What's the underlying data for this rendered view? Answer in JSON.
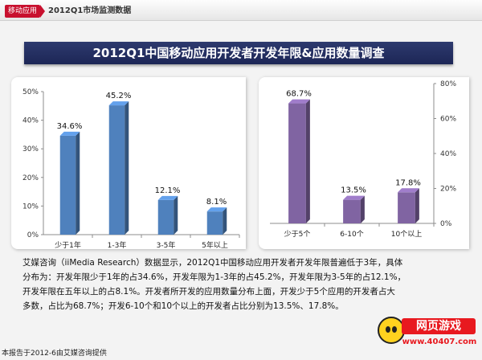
{
  "header": {
    "category_tag": "移动应用",
    "report_label": "2012Q1市场监测数据"
  },
  "banner_title": "2012Q1中国移动应用开发者开发年限&应用数量调查",
  "chart_data": [
    {
      "type": "bar",
      "categories": [
        "少于1年",
        "1-3年",
        "3-5年",
        "5年以上"
      ],
      "values": [
        34.6,
        45.2,
        12.1,
        8.1
      ],
      "data_labels": [
        "34.6%",
        "45.2%",
        "12.1%",
        "8.1%"
      ],
      "ylim": [
        0,
        50
      ],
      "y_ticks": [
        "0%",
        "10%",
        "20%",
        "30%",
        "40%",
        "50%"
      ],
      "axis_side": "left",
      "bar_color": "#4f81bd",
      "grid": false
    },
    {
      "type": "bar",
      "categories": [
        "少于5个",
        "6-10个",
        "10个以上"
      ],
      "values": [
        68.7,
        13.5,
        17.8
      ],
      "data_labels": [
        "68.7%",
        "13.5%",
        "17.8%"
      ],
      "ylim": [
        0,
        80
      ],
      "y_ticks": [
        "0%",
        "20%",
        "40%",
        "60%",
        "80%"
      ],
      "axis_side": "right",
      "bar_color": "#8064a2",
      "grid": false
    }
  ],
  "description": {
    "line1": "艾媒咨询（iiMedia Research）数据显示，2012Q1中国移动应用开发者开发年限普遍低于3年，具体",
    "line2": "分布为：开发年限少于1年的占34.6%，开发年限为1-3年的占45.2%，开发年限为3-5年的占12.1%，",
    "line3": "开发年限在五年以上的占8.1%。开发者所开发的应用数量分布上面，开发少于5个应用的开发者占大",
    "line4": "多数，占比为68.7%；开发6-10个和10个以上的开发者占比分别为13.5%、17.8%。"
  },
  "footer_note": "本报告于2012-6由艾媒咨询提供",
  "logo": {
    "title": "网页游戏",
    "url": "www.40407.com"
  }
}
